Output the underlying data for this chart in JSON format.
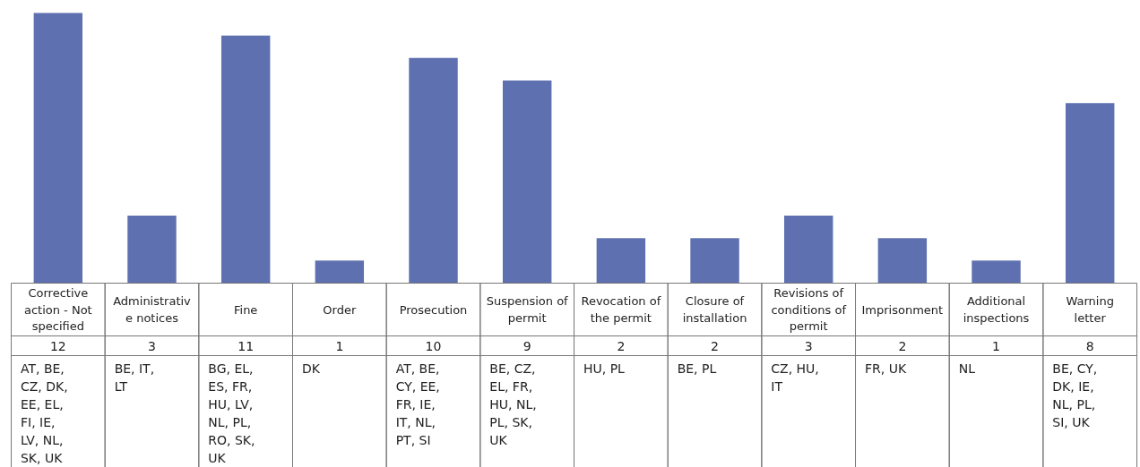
{
  "chart_data": {
    "type": "bar",
    "categories": [
      "Corrective action - Not specified",
      "Administrative notices",
      "Fine",
      "Order",
      "Prosecution",
      "Suspension of permit",
      "Revocation of the permit",
      "Closure of installation",
      "Revisions of conditions of permit",
      "Imprisonment",
      "Additional inspections",
      "Warning letter"
    ],
    "values": [
      12,
      3,
      11,
      1,
      10,
      9,
      2,
      2,
      3,
      2,
      1,
      8
    ],
    "color": "#5e70b0",
    "data_labels": true,
    "grid": false,
    "annotations": [
      "AT, BE, CZ, DK, EE, EL, FI, IE, LV, NL, SK, UK",
      "BE, IT, LT",
      "BG, EL, ES, FR, HU, LV, NL, PL, RO, SK, UK",
      "DK",
      "AT, BE, CY, EE, FR, IE, IT, NL, PT, SI",
      "BE, CZ, EL, FR, HU, NL, PL, SK, UK",
      "HU, PL",
      "BE, PL",
      "CZ, HU, IT",
      "FR, UK",
      "NL",
      "BE, CY, DK, IE, NL, PL, SI, UK"
    ]
  }
}
